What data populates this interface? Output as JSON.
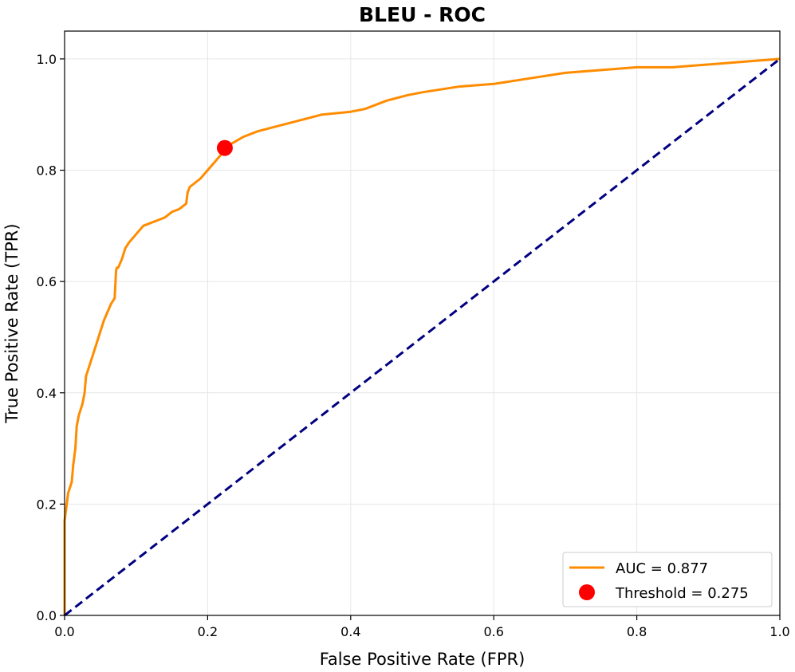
{
  "chart_data": {
    "type": "line",
    "title": "BLEU - ROC",
    "xlabel": "False Positive Rate (FPR)",
    "ylabel": "True Positive Rate (TPR)",
    "xlim": [
      0.0,
      1.0
    ],
    "ylim": [
      0.0,
      1.05
    ],
    "xticks": [
      "0.0",
      "0.2",
      "0.4",
      "0.6",
      "0.8",
      "1.0"
    ],
    "yticks": [
      "0.0",
      "0.2",
      "0.4",
      "0.6",
      "0.8",
      "1.0"
    ],
    "grid": true,
    "legend_position": "lower-right",
    "series": [
      {
        "name": "AUC = 0.877",
        "color": "#ff8c00",
        "style": "solid",
        "x": [
          0.0,
          0.0,
          0.003,
          0.005,
          0.01,
          0.012,
          0.015,
          0.017,
          0.02,
          0.025,
          0.028,
          0.03,
          0.035,
          0.04,
          0.045,
          0.05,
          0.055,
          0.06,
          0.065,
          0.07,
          0.072,
          0.073,
          0.075,
          0.08,
          0.085,
          0.09,
          0.1,
          0.11,
          0.12,
          0.13,
          0.14,
          0.15,
          0.16,
          0.17,
          0.172,
          0.175,
          0.18,
          0.19,
          0.2,
          0.21,
          0.22,
          0.23,
          0.25,
          0.27,
          0.3,
          0.33,
          0.36,
          0.4,
          0.42,
          0.45,
          0.48,
          0.5,
          0.55,
          0.6,
          0.65,
          0.7,
          0.75,
          0.8,
          0.85,
          0.9,
          0.95,
          1.0
        ],
        "y": [
          0.0,
          0.17,
          0.2,
          0.22,
          0.24,
          0.27,
          0.3,
          0.34,
          0.36,
          0.38,
          0.4,
          0.43,
          0.45,
          0.47,
          0.49,
          0.51,
          0.53,
          0.545,
          0.56,
          0.57,
          0.62,
          0.625,
          0.625,
          0.64,
          0.66,
          0.67,
          0.685,
          0.7,
          0.705,
          0.71,
          0.715,
          0.725,
          0.73,
          0.74,
          0.76,
          0.77,
          0.775,
          0.785,
          0.8,
          0.815,
          0.83,
          0.845,
          0.86,
          0.87,
          0.88,
          0.89,
          0.9,
          0.905,
          0.91,
          0.925,
          0.935,
          0.94,
          0.95,
          0.955,
          0.965,
          0.975,
          0.98,
          0.985,
          0.985,
          0.99,
          0.995,
          1.0
        ]
      },
      {
        "name": "",
        "color": "#000080",
        "style": "dashed",
        "x": [
          0.0,
          1.0
        ],
        "y": [
          0.0,
          1.0
        ]
      }
    ],
    "points": [
      {
        "name": "Threshold = 0.275",
        "color": "#ff0000",
        "x": 0.224,
        "y": 0.84
      }
    ]
  }
}
